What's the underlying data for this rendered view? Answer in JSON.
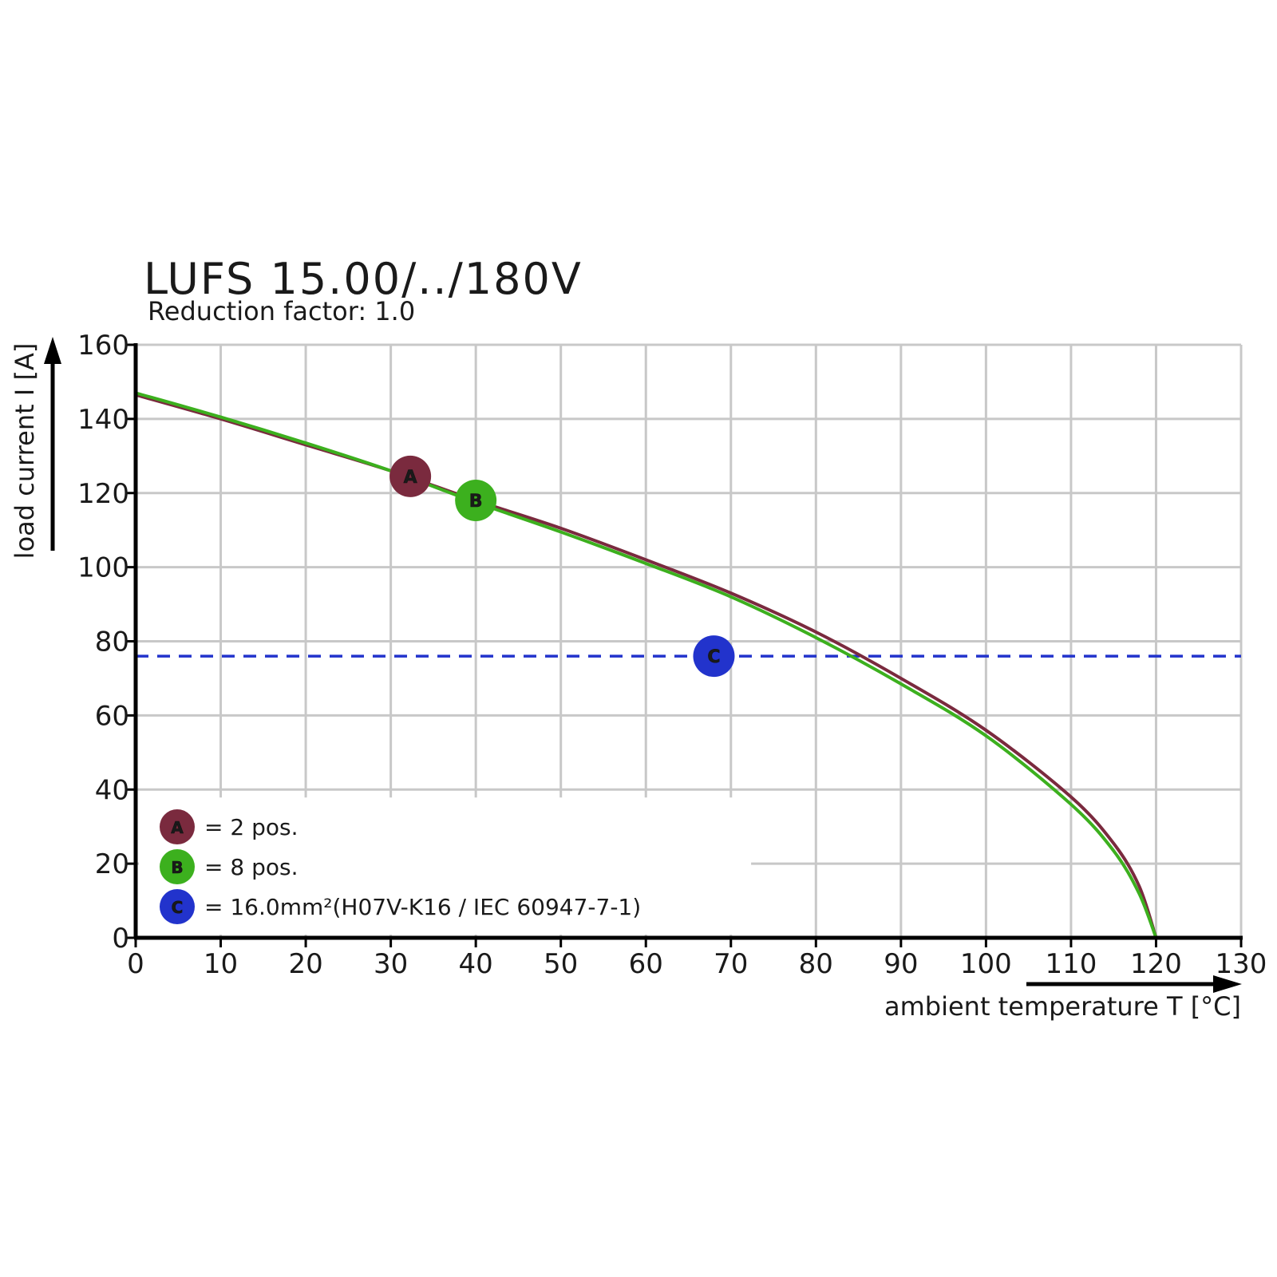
{
  "chart_data": {
    "type": "line",
    "title": "LUFS 15.00/../180V",
    "subtitle": "Reduction factor: 1.0",
    "xlabel": "ambient temperature T [°C]",
    "ylabel": "load current I [A]",
    "xlim": [
      0,
      130
    ],
    "ylim": [
      0,
      160
    ],
    "x_ticks": [
      0,
      10,
      20,
      30,
      40,
      50,
      60,
      70,
      80,
      90,
      100,
      110,
      120,
      130
    ],
    "y_ticks": [
      0,
      20,
      40,
      60,
      80,
      100,
      120,
      140,
      160
    ],
    "grid": true,
    "series": [
      {
        "name": "A",
        "color": "#7a2a3e",
        "x": [
          0,
          10,
          20,
          30,
          40,
          50,
          60,
          70,
          80,
          90,
          100,
          110,
          115,
          118,
          120
        ],
        "y": [
          146.5,
          140,
          133,
          126,
          118,
          110.5,
          102,
          93,
          82.5,
          70,
          56,
          38,
          25.5,
          14,
          0
        ]
      },
      {
        "name": "B",
        "color": "#3cb01e",
        "x": [
          0,
          10,
          20,
          30,
          40,
          50,
          60,
          70,
          80,
          90,
          100,
          110,
          115,
          118,
          120
        ],
        "y": [
          147,
          140.5,
          133.5,
          126,
          117.5,
          109.5,
          101,
          92,
          81,
          68.5,
          54.5,
          36,
          23.5,
          12,
          0
        ]
      }
    ],
    "reference_line": {
      "name": "C",
      "y": 76,
      "color": "#2233cc",
      "style": "dashed"
    },
    "markers": [
      {
        "label": "A",
        "x": 32.3,
        "y": 124.5,
        "color": "#7a2a3e"
      },
      {
        "label": "B",
        "x": 40,
        "y": 118,
        "color": "#3cb01e"
      },
      {
        "label": "C",
        "x": 68,
        "y": 76,
        "color": "#2233cc"
      }
    ],
    "legend": {
      "placement": "bottom-left",
      "items": [
        {
          "label": "A",
          "text": "= 2 pos.",
          "color": "#7a2a3e"
        },
        {
          "label": "B",
          "text": "= 8 pos.",
          "color": "#3cb01e"
        },
        {
          "label": "C",
          "text": "= 16.0mm²(H07V-K16 / IEC 60947-7-1)",
          "color": "#2233cc"
        }
      ]
    }
  }
}
